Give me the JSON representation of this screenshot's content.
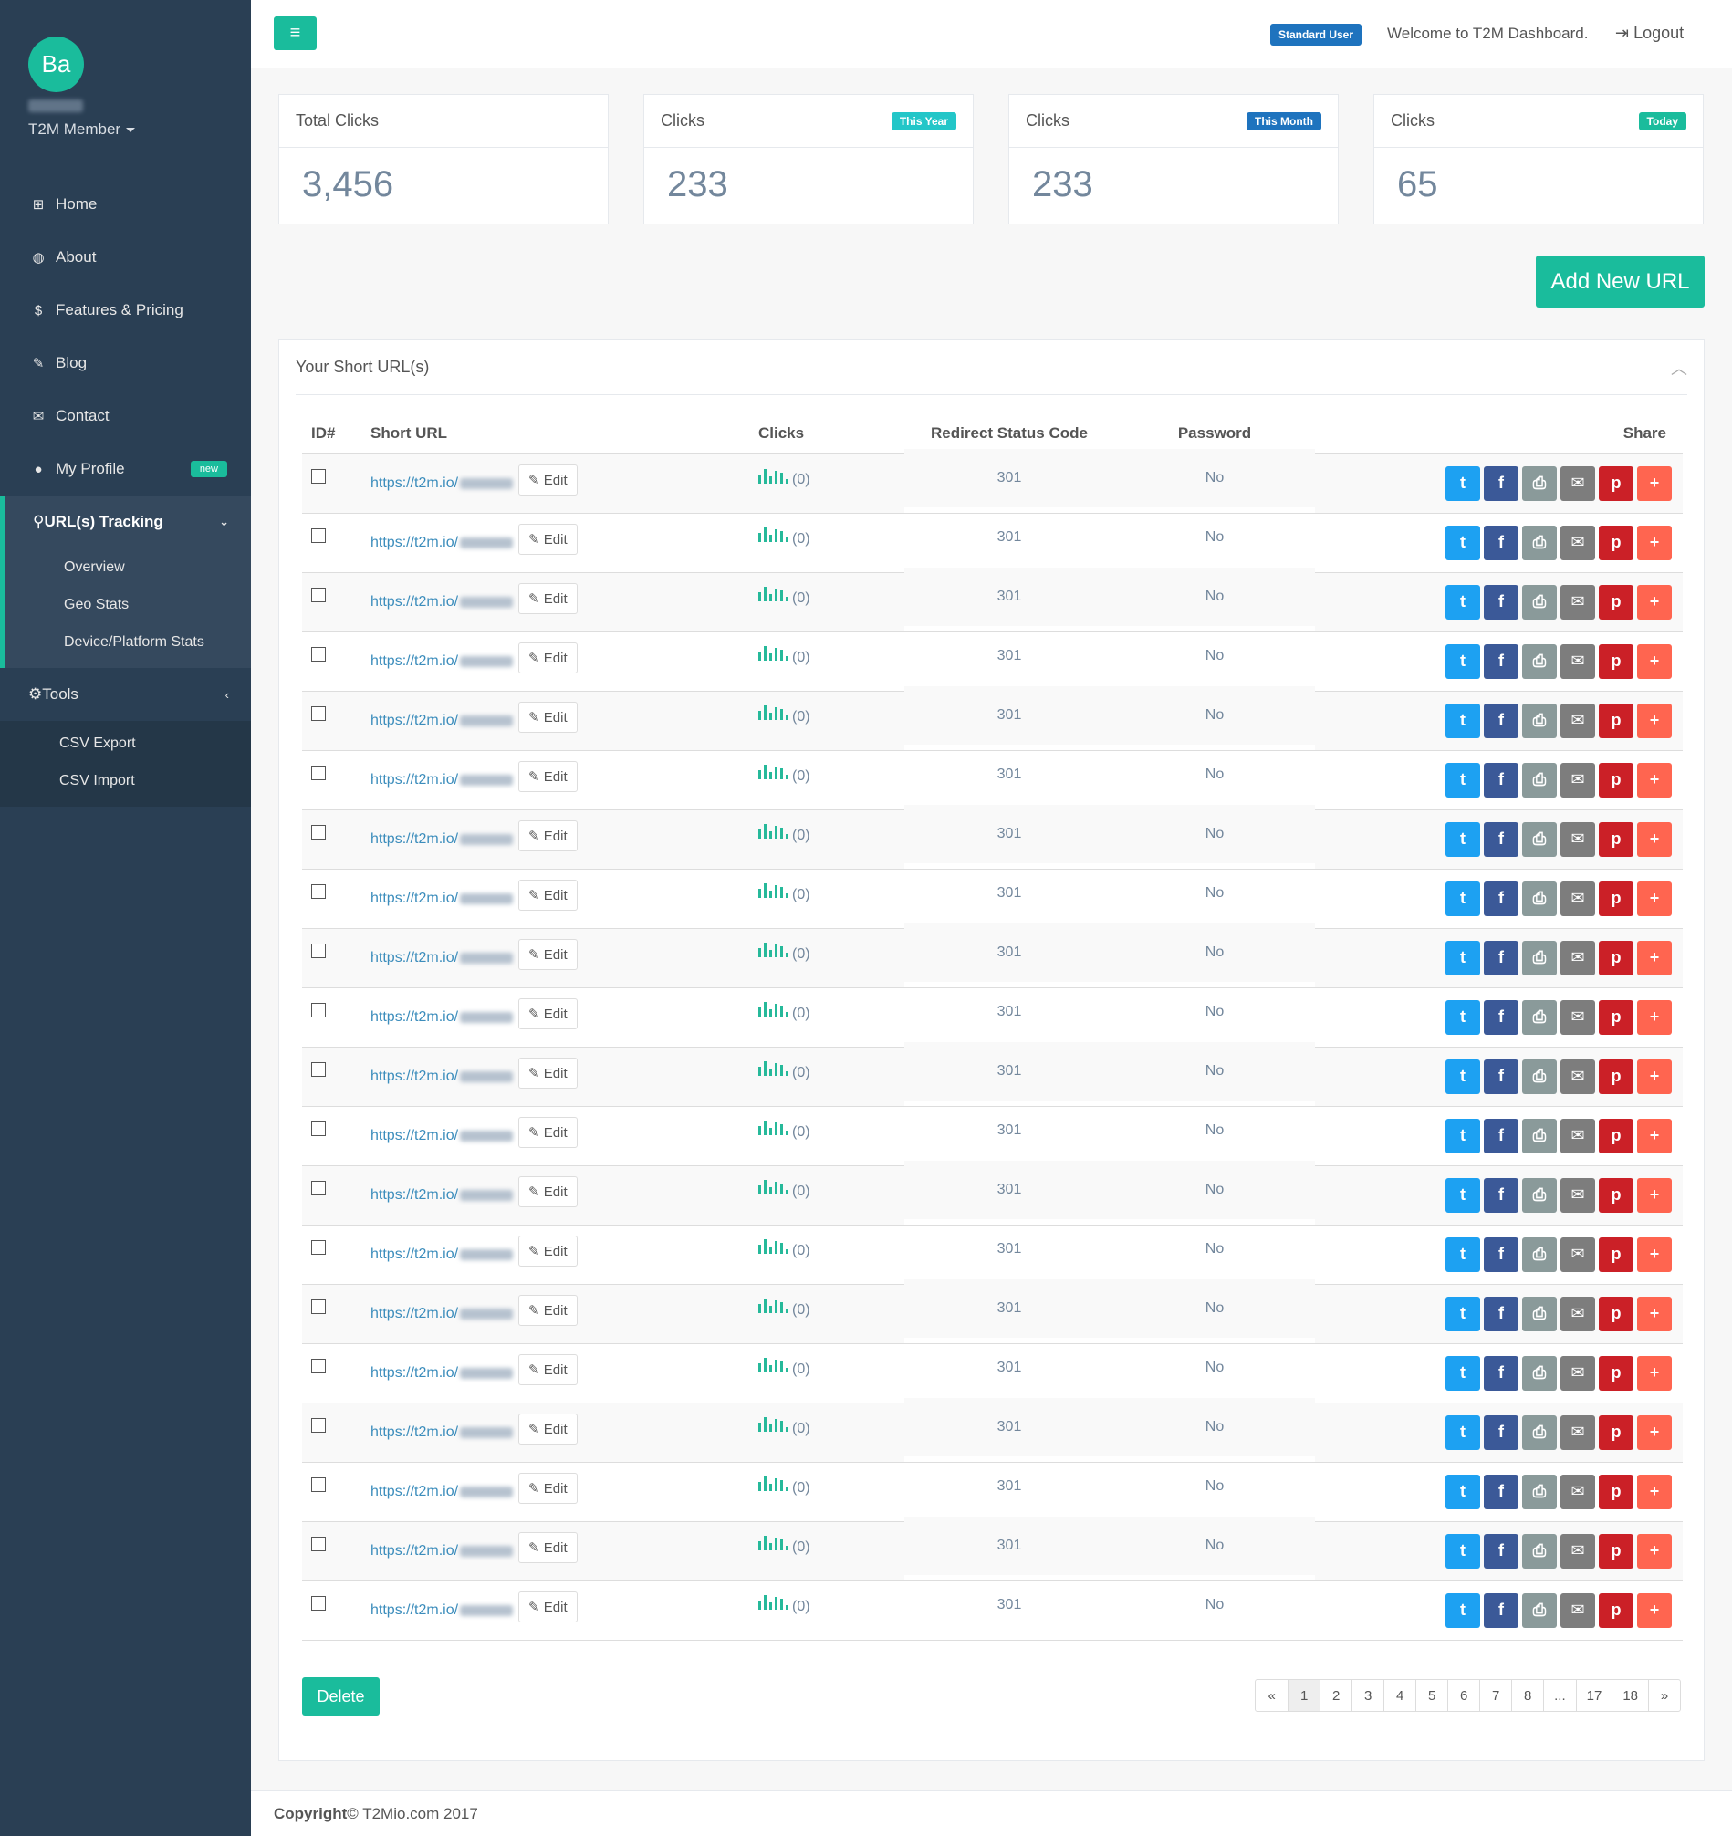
{
  "profile": {
    "initials": "Ba",
    "role": "T2M Member"
  },
  "sidebar": {
    "items": [
      {
        "icon": "⊞",
        "label": "Home"
      },
      {
        "icon": "◍",
        "label": "About"
      },
      {
        "icon": "$",
        "label": "Features & Pricing"
      },
      {
        "icon": "✎",
        "label": "Blog"
      },
      {
        "icon": "✉",
        "label": "Contact"
      },
      {
        "icon": "●",
        "label": "My Profile",
        "badge": "new"
      }
    ],
    "tracking": {
      "label": "URL(s) Tracking",
      "sub": [
        "Overview",
        "Geo Stats",
        "Device/Platform Stats"
      ]
    },
    "tools": {
      "label": "Tools",
      "sub": [
        "CSV Export",
        "CSV Import"
      ]
    }
  },
  "topnav": {
    "menu_icon": "≡",
    "user_badge": "Standard User",
    "welcome": "Welcome to T2M Dashboard.",
    "logout": "Logout"
  },
  "stats": [
    {
      "title": "Total Clicks",
      "value": "3,456",
      "tag": ""
    },
    {
      "title": "Clicks",
      "value": "233",
      "tag": "This Year",
      "tag_color": "#23c6c8"
    },
    {
      "title": "Clicks",
      "value": "233",
      "tag": "This Month",
      "tag_color": "#1e73be"
    },
    {
      "title": "Clicks",
      "value": "65",
      "tag": "Today",
      "tag_color": "#1abc9c"
    }
  ],
  "add_url_label": "Add New URL",
  "panel": {
    "title": "Your Short URL(s)",
    "headers": {
      "id": "ID#",
      "short": "Short URL",
      "clicks": "Clicks",
      "status": "Redirect Status Code",
      "password": "Password",
      "share": "Share"
    },
    "url_prefix": "https://t2m.io/",
    "edit_label": "Edit",
    "clicks_value": "(0)",
    "status_code": "301",
    "password": "No",
    "row_count": 20
  },
  "delete_label": "Delete",
  "pagination": [
    "«",
    "1",
    "2",
    "3",
    "4",
    "5",
    "6",
    "7",
    "8",
    "...",
    "17",
    "18",
    "»"
  ],
  "footer": {
    "bold": "Copyright",
    "rest": " © T2Mio.com 2017"
  }
}
